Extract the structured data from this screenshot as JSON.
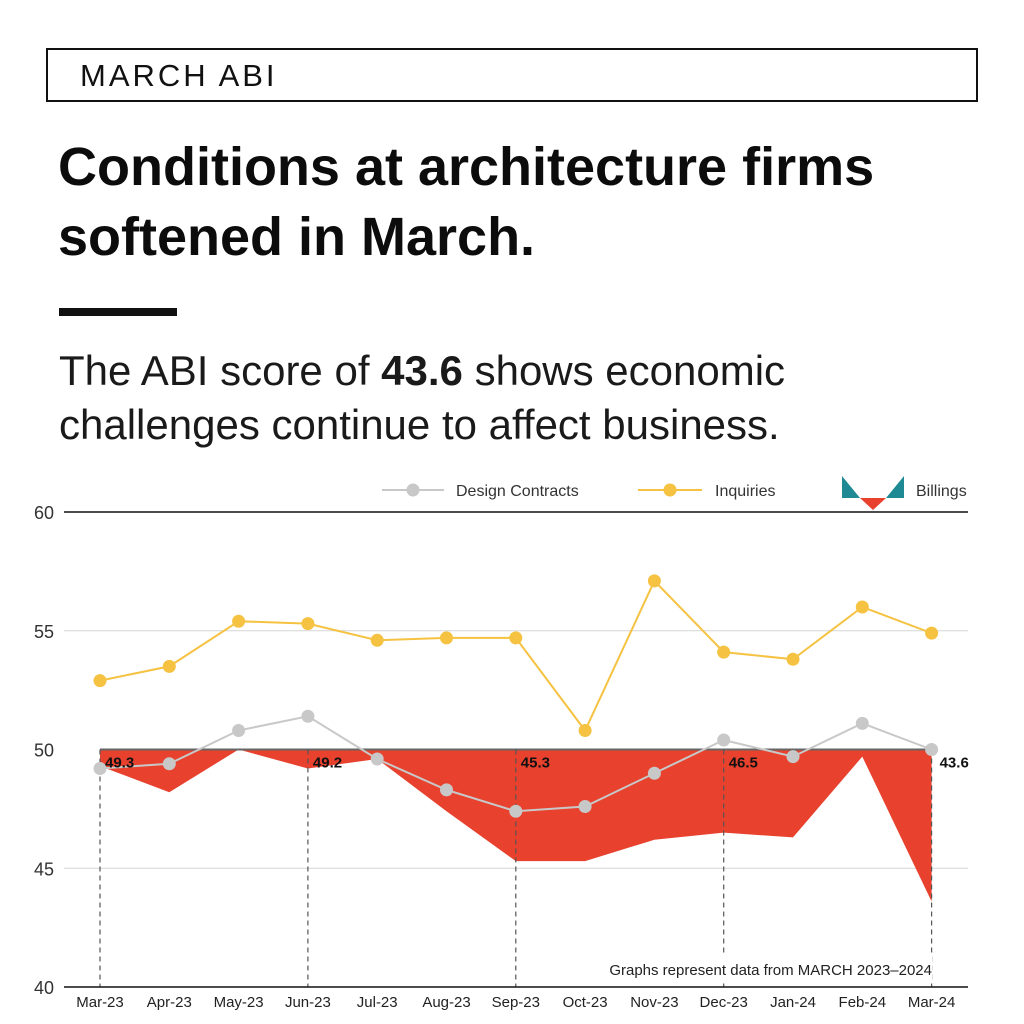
{
  "kicker": "MARCH ABI",
  "headline": "Conditions at architecture firms softened in March.",
  "subhead": {
    "before": "The ABI score of ",
    "value": "43.6",
    "after": " shows economic challenges continue to affect business."
  },
  "chart_data": {
    "type": "line",
    "categories": [
      "Mar-23",
      "Apr-23",
      "May-23",
      "Jun-23",
      "Jul-23",
      "Aug-23",
      "Sep-23",
      "Oct-23",
      "Nov-23",
      "Dec-23",
      "Jan-24",
      "Feb-24",
      "Mar-24"
    ],
    "ylim": [
      40,
      60
    ],
    "yticks": [
      40,
      45,
      50,
      55,
      60
    ],
    "baseline": 50,
    "grid": true,
    "legend_position": "top-right",
    "series": [
      {
        "name": "Design Contracts",
        "color": "#c8c8c8",
        "values": [
          49.2,
          49.4,
          50.8,
          51.4,
          49.6,
          48.3,
          47.4,
          47.6,
          49.0,
          50.4,
          49.7,
          51.1,
          50.0
        ]
      },
      {
        "name": "Inquiries",
        "color": "#f5c242",
        "values": [
          52.9,
          53.5,
          55.4,
          55.3,
          54.6,
          54.7,
          54.7,
          50.8,
          57.1,
          54.1,
          53.8,
          56.0,
          54.9
        ]
      },
      {
        "name": "Billings",
        "color": "#e8412e",
        "values": [
          49.3,
          48.2,
          50.0,
          49.2,
          49.6,
          47.4,
          45.3,
          45.3,
          46.2,
          46.5,
          46.3,
          49.7,
          43.6
        ]
      }
    ],
    "data_labels": [
      {
        "index": 0,
        "text": "49.3"
      },
      {
        "index": 3,
        "text": "49.2"
      },
      {
        "index": 6,
        "text": "45.3"
      },
      {
        "index": 9,
        "text": "46.5"
      },
      {
        "index": 12,
        "text": "43.6"
      }
    ],
    "note": "Graphs represent data from MARCH 2023–2024",
    "colors": {
      "billings_icon_teal": "#1f8a93",
      "billings_icon_red": "#e8412e",
      "axis": "#111111",
      "grid": "#d6d6d6"
    }
  }
}
